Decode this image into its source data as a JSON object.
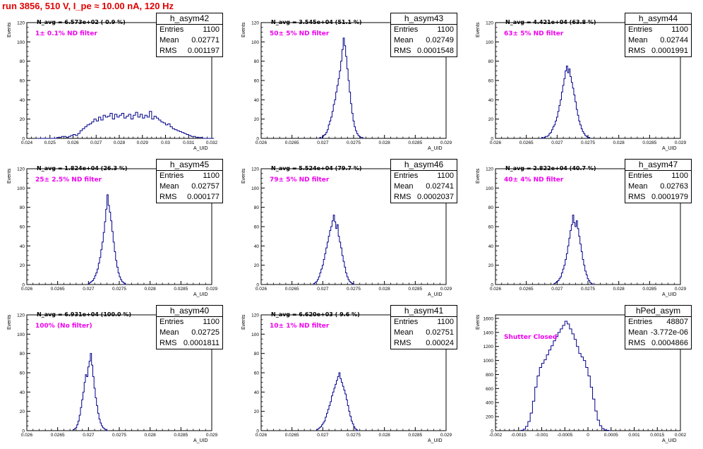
{
  "run_title": "run 3856,   510 V, I_pe ≈ 10.00 nA, 120 Hz",
  "colors": {
    "line": "#00008b",
    "filter_text": "#ee00ee",
    "title": "#e00000"
  },
  "chart_data": [
    {
      "type": "histogram",
      "name": "h_asym42",
      "n_avg": "N_avg = 6.573e+02 ( 0.9 %)",
      "filter": "1± 0.1% ND filter",
      "entries": "1100",
      "mean": "0.02771",
      "rms": "0.001197",
      "ylabel": "Events",
      "xlabel": "A_UID",
      "xlim": [
        0.024,
        0.032
      ],
      "ylim": [
        0,
        120
      ],
      "xticks": [
        "0.024",
        "0.025",
        "0.026",
        "0.027",
        "0.028",
        "0.029",
        "0.03",
        "0.031",
        "0.032"
      ],
      "yticks": [
        "0",
        "20",
        "40",
        "60",
        "80",
        "100",
        "120"
      ],
      "bin_start": 0.0244,
      "bin_width": 0.0001,
      "values": [
        0,
        0,
        0,
        0,
        0,
        0,
        0,
        0,
        0,
        1,
        1,
        2,
        2,
        1,
        2,
        3,
        4,
        3,
        5,
        8,
        10,
        12,
        14,
        15,
        17,
        20,
        18,
        22,
        19,
        24,
        22,
        23,
        26,
        20,
        25,
        22,
        24,
        26,
        21,
        23,
        25,
        20,
        24,
        27,
        22,
        25,
        21,
        24,
        22,
        28,
        20,
        23,
        21,
        19,
        17,
        16,
        14,
        15,
        12,
        10,
        9,
        8,
        7,
        6,
        5,
        4,
        3,
        2,
        2,
        1,
        1,
        1,
        0,
        0,
        0,
        0,
        0
      ]
    },
    {
      "type": "histogram",
      "name": "h_asym43",
      "n_avg": "N_avg = 3.545e+04 (51.1 %)",
      "filter": "50± 5% ND filter",
      "entries": "1100",
      "mean": "0.02749",
      "rms": "0.0001548",
      "ylabel": "Events",
      "xlabel": "A_UID",
      "xlim": [
        0.026,
        0.029
      ],
      "ylim": [
        0,
        120
      ],
      "xticks": [
        "0.026",
        "0.0265",
        "0.027",
        "0.0275",
        "0.028",
        "0.0285",
        "0.029"
      ],
      "yticks": [
        "0",
        "20",
        "40",
        "60",
        "80",
        "100",
        "120"
      ],
      "bin_start": 0.02695,
      "bin_width": 2e-05,
      "values": [
        1,
        0,
        2,
        3,
        4,
        6,
        9,
        14,
        18,
        22,
        28,
        35,
        40,
        48,
        55,
        62,
        70,
        80,
        92,
        104,
        96,
        85,
        72,
        60,
        48,
        36,
        26,
        18,
        12,
        8,
        5,
        3,
        2,
        1,
        1,
        0
      ]
    },
    {
      "type": "histogram",
      "name": "h_asym44",
      "n_avg": "N_avg = 4.421e+04 (63.8 %)",
      "filter": "63± 5% ND filter",
      "entries": "1100",
      "mean": "0.02744",
      "rms": "0.0001991",
      "ylabel": "Events",
      "xlabel": "A_UID",
      "xlim": [
        0.026,
        0.029
      ],
      "ylim": [
        0,
        120
      ],
      "xticks": [
        "0.026",
        "0.0265",
        "0.027",
        "0.0275",
        "0.028",
        "0.0285",
        "0.029"
      ],
      "yticks": [
        "0",
        "20",
        "40",
        "60",
        "80",
        "100",
        "120"
      ],
      "bin_start": 0.02675,
      "bin_width": 2e-05,
      "values": [
        1,
        0,
        1,
        2,
        2,
        3,
        5,
        6,
        9,
        12,
        14,
        18,
        22,
        28,
        34,
        40,
        48,
        55,
        62,
        70,
        75,
        68,
        72,
        64,
        58,
        52,
        45,
        38,
        30,
        24,
        18,
        14,
        10,
        7,
        5,
        3,
        2,
        1,
        1,
        0
      ]
    },
    {
      "type": "histogram",
      "name": "h_asym45",
      "n_avg": "N_avg = 1.824e+04 (26.3 %)",
      "filter": "25± 2.5% ND filter",
      "entries": "1100",
      "mean": "0.02757",
      "rms": "0.000177",
      "ylabel": "Events",
      "xlabel": "A_UID",
      "xlim": [
        0.026,
        0.029
      ],
      "ylim": [
        0,
        120
      ],
      "xticks": [
        "0.026",
        "0.0265",
        "0.027",
        "0.0275",
        "0.028",
        "0.0285",
        "0.029"
      ],
      "yticks": [
        "0",
        "20",
        "40",
        "60",
        "80",
        "100",
        "120"
      ],
      "bin_start": 0.027,
      "bin_width": 2e-05,
      "values": [
        1,
        2,
        3,
        4,
        6,
        9,
        12,
        16,
        22,
        28,
        36,
        44,
        54,
        65,
        78,
        93,
        82,
        75,
        66,
        55,
        44,
        34,
        25,
        18,
        12,
        8,
        5,
        3,
        2,
        1,
        0
      ]
    },
    {
      "type": "histogram",
      "name": "h_asym46",
      "n_avg": "N_avg = 5.524e+04 (79.7 %)",
      "filter": "79± 5% ND filter",
      "entries": "1100",
      "mean": "0.02741",
      "rms": "0.0002037",
      "ylabel": "Events",
      "xlabel": "A_UID",
      "xlim": [
        0.026,
        0.029
      ],
      "ylim": [
        0,
        120
      ],
      "xticks": [
        "0.026",
        "0.0265",
        "0.027",
        "0.0275",
        "0.028",
        "0.0285",
        "0.029"
      ],
      "yticks": [
        "0",
        "20",
        "40",
        "60",
        "80",
        "100",
        "120"
      ],
      "bin_start": 0.02685,
      "bin_width": 2e-05,
      "values": [
        1,
        2,
        3,
        5,
        8,
        12,
        16,
        20,
        26,
        32,
        38,
        44,
        50,
        56,
        60,
        66,
        72,
        65,
        58,
        62,
        50,
        44,
        38,
        30,
        24,
        18,
        12,
        8,
        5,
        3,
        2,
        1,
        0
      ]
    },
    {
      "type": "histogram",
      "name": "h_asym47",
      "n_avg": "N_avg = 2.822e+04 (40.7 %)",
      "filter": "40± 4% ND filter",
      "entries": "1100",
      "mean": "0.02763",
      "rms": "0.0001979",
      "ylabel": "Events",
      "xlabel": "A_UID",
      "xlim": [
        0.026,
        0.029
      ],
      "ylim": [
        0,
        120
      ],
      "xticks": [
        "0.026",
        "0.0265",
        "0.027",
        "0.0275",
        "0.028",
        "0.0285",
        "0.029"
      ],
      "yticks": [
        "0",
        "20",
        "40",
        "60",
        "80",
        "100",
        "120"
      ],
      "bin_start": 0.02695,
      "bin_width": 2e-05,
      "values": [
        1,
        2,
        3,
        4,
        6,
        8,
        12,
        16,
        20,
        26,
        32,
        40,
        48,
        56,
        62,
        72,
        64,
        60,
        66,
        58,
        50,
        42,
        34,
        26,
        20,
        14,
        10,
        6,
        4,
        2,
        1,
        0
      ]
    },
    {
      "type": "histogram",
      "name": "h_asym40",
      "n_avg": "N_avg = 6.931e+04 (100.0 %)",
      "filter": "100% (No filter)",
      "entries": "1100",
      "mean": "0.02725",
      "rms": "0.0001811",
      "ylabel": "Events",
      "xlabel": "A_UID",
      "xlim": [
        0.026,
        0.029
      ],
      "ylim": [
        0,
        120
      ],
      "xticks": [
        "0.026",
        "0.0265",
        "0.027",
        "0.0275",
        "0.028",
        "0.0285",
        "0.029"
      ],
      "yticks": [
        "0",
        "20",
        "40",
        "60",
        "80",
        "100",
        "120"
      ],
      "bin_start": 0.02675,
      "bin_width": 2e-05,
      "values": [
        1,
        2,
        3,
        6,
        10,
        16,
        24,
        32,
        40,
        50,
        58,
        56,
        66,
        72,
        80,
        68,
        56,
        44,
        34,
        26,
        18,
        12,
        8,
        5,
        3,
        2,
        1,
        0
      ]
    },
    {
      "type": "histogram",
      "name": "h_asym41",
      "n_avg": "N_avg = 6.620e+03 ( 9.6 %)",
      "filter": "10± 1% ND filter",
      "entries": "1100",
      "mean": "0.02751",
      "rms": "0.00024",
      "ylabel": "Events",
      "xlabel": "A_UID",
      "xlim": [
        0.026,
        0.029
      ],
      "ylim": [
        0,
        120
      ],
      "xticks": [
        "0.026",
        "0.0265",
        "0.027",
        "0.0275",
        "0.028",
        "0.0285",
        "0.029"
      ],
      "yticks": [
        "0",
        "20",
        "40",
        "60",
        "80",
        "100",
        "120"
      ],
      "bin_start": 0.0269,
      "bin_width": 2e-05,
      "values": [
        1,
        2,
        3,
        4,
        6,
        8,
        10,
        14,
        18,
        22,
        26,
        30,
        36,
        40,
        44,
        48,
        52,
        56,
        60,
        54,
        50,
        46,
        42,
        38,
        32,
        26,
        20,
        15,
        10,
        7,
        4,
        2,
        1,
        0
      ]
    },
    {
      "type": "histogram",
      "name": "hPed_asym",
      "filter": "Shutter Closed",
      "entries": "48807",
      "mean": "-3.772e-06",
      "rms": "0.0004866",
      "ylabel": "Events",
      "xlabel": "A_UID",
      "xlim": [
        -0.002,
        0.002
      ],
      "ylim": [
        0,
        1650
      ],
      "xticks": [
        "-0.002",
        "-0.0015",
        "-0.001",
        "-0.0005",
        "0",
        "0.0005",
        "0.001",
        "0.0015",
        "0.002"
      ],
      "yticks": [
        "0",
        "200",
        "400",
        "600",
        "800",
        "1000",
        "1200",
        "1400",
        "1600"
      ],
      "bin_start": -0.00145,
      "bin_width": 5e-05,
      "values": [
        5,
        20,
        60,
        130,
        250,
        420,
        620,
        780,
        900,
        960,
        1010,
        1080,
        1150,
        1210,
        1280,
        1340,
        1400,
        1450,
        1500,
        1560,
        1520,
        1450,
        1380,
        1300,
        1200,
        1100,
        1050,
        1000,
        900,
        780,
        620,
        450,
        280,
        150,
        70,
        30,
        10,
        5,
        0
      ]
    }
  ]
}
